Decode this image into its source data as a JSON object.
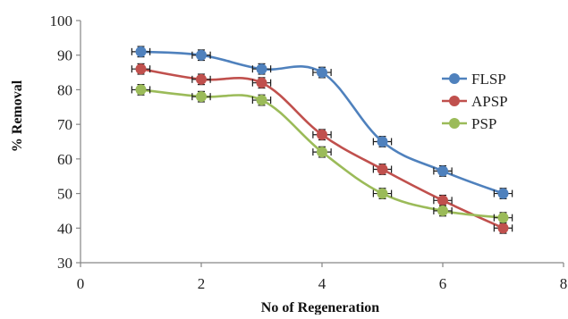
{
  "chart_data": {
    "type": "line",
    "title": "",
    "xlabel": "No of Regeneration",
    "ylabel": "% Removal",
    "xlim": [
      0,
      8
    ],
    "ylim": [
      30,
      100
    ],
    "x_ticks": [
      0,
      2,
      4,
      6,
      8
    ],
    "y_ticks": [
      30,
      40,
      50,
      60,
      70,
      80,
      90,
      100
    ],
    "grid": false,
    "legend_position": "right",
    "error_bars": true,
    "error_value": 1.5,
    "series": [
      {
        "name": "FLSP",
        "color": "#4f81bd",
        "x": [
          1,
          2,
          3,
          4,
          5,
          6,
          7
        ],
        "values": [
          91,
          90,
          86,
          85,
          65,
          56.5,
          50
        ]
      },
      {
        "name": "APSP",
        "color": "#c0504d",
        "x": [
          1,
          2,
          3,
          4,
          5,
          6,
          7
        ],
        "values": [
          86,
          83,
          82,
          67,
          57,
          48,
          40
        ]
      },
      {
        "name": "PSP",
        "color": "#9bbb59",
        "x": [
          1,
          2,
          3,
          4,
          5,
          6,
          7
        ],
        "values": [
          80,
          78,
          77,
          62,
          50,
          45,
          43
        ]
      }
    ]
  }
}
